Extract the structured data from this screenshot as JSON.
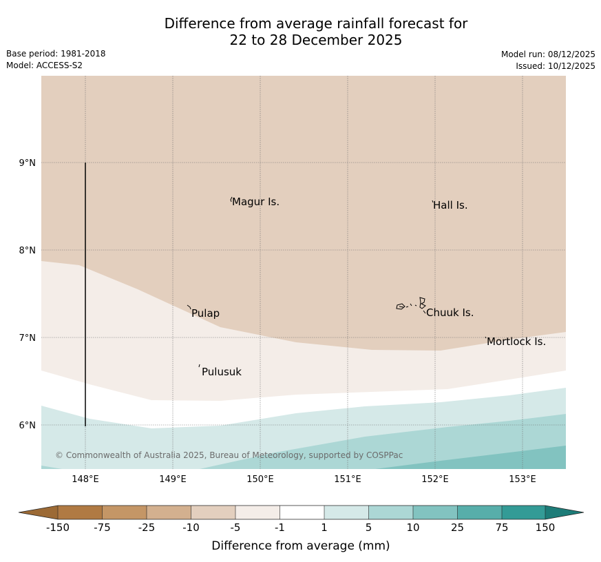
{
  "title": {
    "line1": "Difference from average rainfall forecast for",
    "line2": "22 to 28 December 2025"
  },
  "meta": {
    "base_period": "Base period: 1981-2018",
    "model": "Model: ACCESS-S2",
    "model_run": "Model run: 08/12/2025",
    "issued": "Issued: 10/12/2025"
  },
  "map": {
    "lon_labels": [
      "148°E",
      "149°E",
      "150°E",
      "151°E",
      "152°E",
      "153°E"
    ],
    "lat_labels": [
      "9°N",
      "8°N",
      "7°N",
      "6°N"
    ],
    "places": {
      "magur": "Magur Is.",
      "hall": "Hall Is.",
      "pulap": "Pulap",
      "chuuk": "Chuuk Is.",
      "mortlock": "Mortlock Is.",
      "pulusuk": "Pulusuk"
    },
    "copyright": "© Commonwealth of Australia 2025, Bureau of Meteorology, supported by COSPPac"
  },
  "legend": {
    "title": "Difference from average (mm)",
    "ticks": [
      "-150",
      "-75",
      "-25",
      "-10",
      "-5",
      "-1",
      "1",
      "5",
      "10",
      "25",
      "75",
      "150"
    ],
    "colors": {
      "below_150": "#9c6a35",
      "m150_m75": "#b07a43",
      "m75_m25": "#c49666",
      "m25_m10": "#d3b08f",
      "m10_m5": "#e3cfbe",
      "m5_m1": "#f4ede8",
      "m1_p1": "#ffffff",
      "p1_p5": "#d5e9e8",
      "p5_p10": "#acd7d5",
      "p10_p25": "#82c3c0",
      "p25_p75": "#57aeaa",
      "p75_p150": "#339b96",
      "above_150": "#1d7c78"
    }
  }
}
